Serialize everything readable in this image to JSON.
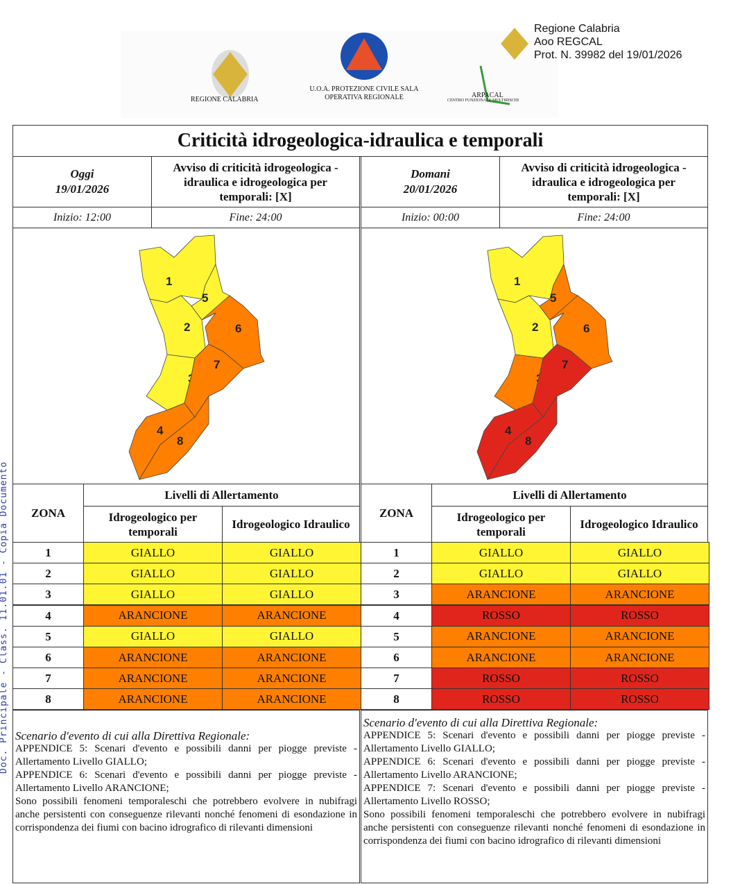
{
  "header": {
    "logos": [
      {
        "name": "regione-calabria",
        "text": "REGIONE CALABRIA"
      },
      {
        "name": "protezione-civile",
        "text": "U.O.A. PROTEZIONE CIVILE SALA OPERATIVA REGIONALE"
      },
      {
        "name": "arpacal",
        "text": "ARPACAL"
      },
      {
        "name": "arpacal-sub",
        "text": "CENTRO FUNZIONALE MULTIRISCHI"
      }
    ],
    "stamp": [
      "Regione Calabria",
      "Aoo REGCAL",
      "Prot. N. 39982 del 19/01/2026"
    ]
  },
  "side_text": "Doc. Principale - Class. 11.01.01 - Copia Documento",
  "title": "Criticità idrogeologica-idraulica e temporali",
  "colors": {
    "GIALLO": "#fff533",
    "ARANCIONE": "#ff7f00",
    "ROSSO": "#e0261c"
  },
  "days": [
    {
      "label": "Oggi",
      "date": "19/01/2026",
      "avviso": "Avviso di criticità idrogeologica - idraulica e idrogeologica per temporali: [X]",
      "inizio": "Inizio: 12:00",
      "fine": "Fine: 24:00",
      "zona_label": "ZONA",
      "livelli_label": "Livelli di Allertamento",
      "col1": "Idrogeologico per temporali",
      "col2": "Idrogeologico Idraulico",
      "rows": [
        [
          "1",
          "GIALLO",
          "GIALLO"
        ],
        [
          "2",
          "GIALLO",
          "GIALLO"
        ],
        [
          "3",
          "GIALLO",
          "GIALLO"
        ],
        [
          "4",
          "ARANCIONE",
          "ARANCIONE"
        ],
        [
          "5",
          "GIALLO",
          "GIALLO"
        ],
        [
          "6",
          "ARANCIONE",
          "ARANCIONE"
        ],
        [
          "7",
          "ARANCIONE",
          "ARANCIONE"
        ],
        [
          "8",
          "ARANCIONE",
          "ARANCIONE"
        ]
      ],
      "scenario_title": "Scenario d'evento di cui alla Direttiva Regionale:",
      "scenario": [
        "APPENDICE 5: Scenari d'evento e possibili danni per piogge previste - Allertamento Livello GIALLO;",
        "APPENDICE 6: Scenari d'evento e possibili danni per piogge previste - Allertamento Livello ARANCIONE;",
        "Sono possibili fenomeni temporaleschi che potrebbero evolvere in nubifragi anche persistenti con conseguenze rilevanti nonché fenomeni di esondazione in corrispondenza dei fiumi con bacino idrografico di rilevanti dimensioni"
      ]
    },
    {
      "label": "Domani",
      "date": "20/01/2026",
      "avviso": "Avviso di criticità idrogeologica - idraulica e idrogeologica per temporali: [X]",
      "inizio": "Inizio: 00:00",
      "fine": "Fine: 24:00",
      "zona_label": "ZONA",
      "livelli_label": "Livelli di Allertamento",
      "col1": "Idrogeologico per temporali",
      "col2": "Idrogeologico Idraulico",
      "rows": [
        [
          "1",
          "GIALLO",
          "GIALLO"
        ],
        [
          "2",
          "GIALLO",
          "GIALLO"
        ],
        [
          "3",
          "ARANCIONE",
          "ARANCIONE"
        ],
        [
          "4",
          "ROSSO",
          "ROSSO"
        ],
        [
          "5",
          "ARANCIONE",
          "ARANCIONE"
        ],
        [
          "6",
          "ARANCIONE",
          "ARANCIONE"
        ],
        [
          "7",
          "ROSSO",
          "ROSSO"
        ],
        [
          "8",
          "ROSSO",
          "ROSSO"
        ]
      ],
      "scenario_title": "Scenario d'evento di cui alla Direttiva Regionale:",
      "scenario": [
        "APPENDICE 5: Scenari d'evento e possibili danni per piogge previste - Allertamento Livello GIALLO;",
        "APPENDICE 6: Scenari d'evento e possibili danni per piogge previste - Allertamento Livello ARANCIONE;",
        "APPENDICE 7: Scenari d'evento e possibili danni per piogge previste - Allertamento Livello ROSSO;",
        "Sono possibili fenomeni temporaleschi che potrebbero evolvere in nubifragi anche persistenti con conseguenze rilevanti nonché fenomeni di esondazione in corrispondenza dei fiumi con bacino idrografico di rilevanti dimensioni"
      ]
    }
  ]
}
